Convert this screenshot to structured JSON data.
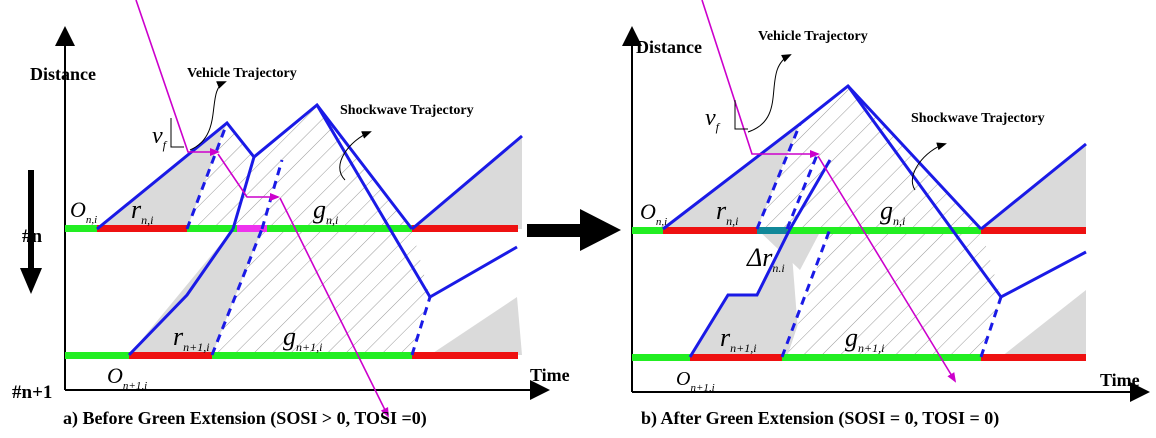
{
  "colors": {
    "trajectory_blue": "#1a1ae6",
    "vehicle_magenta": "#cc00cc",
    "green_phase": "#22ee22",
    "red_phase": "#ee1111",
    "extension_teal": "#118899",
    "shade_gray": "#dadada",
    "axis_black": "#000000"
  },
  "left_labels": {
    "row_n": "#n",
    "row_n1": "#n+1"
  },
  "panel_a": {
    "y_axis_label": "Distance",
    "x_axis_label": "Time",
    "vehicle_label": "Vehicle Trajectory",
    "shockwave_label": "Shockwave Trajectory",
    "vf_base": "v",
    "vf_sub": "f",
    "o_n": {
      "base": "O",
      "sub": "n,i"
    },
    "r_n": {
      "base": "r",
      "sub": "n,i"
    },
    "g_n": {
      "base": "g",
      "sub": "n,i"
    },
    "o_n1": {
      "base": "O",
      "sub": "n+1,i"
    },
    "r_n1": {
      "base": "r",
      "sub": "n+1,i"
    },
    "g_n1": {
      "base": "g",
      "sub": "n+1,i"
    },
    "caption": "a) Before Green Extension (SOSI > 0, TOSI =0)"
  },
  "panel_b": {
    "y_axis_label": "Distance",
    "x_axis_label": "Time",
    "vehicle_label": "Vehicle Trajectory",
    "shockwave_label": "Shockwave Trajectory",
    "vf_base": "v",
    "vf_sub": "f",
    "o_n": {
      "base": "O",
      "sub": "n,i"
    },
    "r_n": {
      "base": "r",
      "sub": "n,i"
    },
    "g_n": {
      "base": "g",
      "sub": "n,i"
    },
    "delta_r": {
      "base": "Δr",
      "sub": "n.i"
    },
    "o_n1": {
      "base": "O",
      "sub": "n+1,i"
    },
    "r_n1": {
      "base": "r",
      "sub": "n+1,i"
    },
    "g_n1": {
      "base": "g",
      "sub": "n+1,i"
    },
    "caption": "b) After Green Extension (SOSI = 0, TOSI = 0)"
  }
}
